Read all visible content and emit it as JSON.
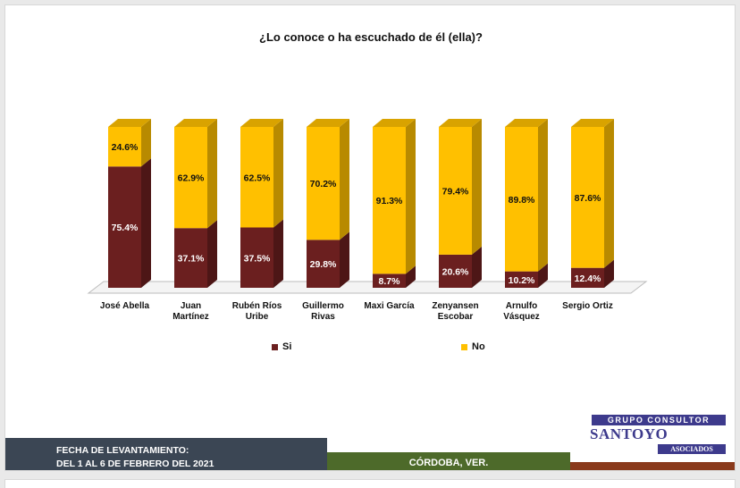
{
  "chart_data": {
    "type": "bar",
    "title": "¿Lo conoce o ha escuchado de él (ella)?",
    "categories": [
      "José Abella",
      "Juan Martínez",
      "Rubén Ríos Uribe",
      "Guillermo Rivas",
      "Maxi García",
      "Zenyansen Escobar",
      "Arnulfo Vásquez",
      "Sergio Ortiz"
    ],
    "stacked": true,
    "ylim": [
      0,
      100
    ],
    "series": [
      {
        "name": "Si",
        "color": "#6b1f1f",
        "values": [
          75.4,
          37.1,
          37.5,
          29.8,
          8.7,
          20.6,
          10.2,
          12.4
        ],
        "labels": [
          "75.4%",
          "37.1%",
          "37.5%",
          "29.8%",
          "8.7%",
          "20.6%",
          "10.2%",
          "12.4%"
        ]
      },
      {
        "name": "No",
        "color": "#ffc000",
        "values": [
          24.6,
          62.9,
          62.5,
          70.2,
          91.3,
          79.4,
          89.8,
          87.6
        ],
        "labels": [
          "24.6%",
          "62.9%",
          "62.5%",
          "70.2%",
          "91.3%",
          "79.4%",
          "89.8%",
          "87.6%"
        ]
      }
    ],
    "legend_position": "bottom",
    "grid": false
  },
  "category_lines": [
    [
      "José Abella"
    ],
    [
      "Juan",
      "Martínez"
    ],
    [
      "Rubén Ríos",
      "Uribe"
    ],
    [
      "Guillermo",
      "Rivas"
    ],
    [
      "Maxi García"
    ],
    [
      "Zenyansen",
      "Escobar"
    ],
    [
      "Arnulfo",
      "Vásquez"
    ],
    [
      "Sergio Ortiz"
    ]
  ],
  "legend": {
    "si": "Si",
    "no": "No"
  },
  "footer": {
    "date_label": "FECHA DE LEVANTAMIENTO:",
    "date_value": "DEL 1 AL 6 DE FEBRERO DEL 2021",
    "location": "CÓRDOBA, VER."
  },
  "logo": {
    "top": "GRUPO CONSULTOR",
    "name": "SANTOYO",
    "sub": "ASOCIADOS"
  },
  "colors": {
    "si": "#6b1f1f",
    "no": "#ffc000",
    "footer_left": "#3b4654",
    "footer_mid": "#4d6a2a",
    "footer_right": "#8a3a1c",
    "logo": "#3d3a8c"
  }
}
